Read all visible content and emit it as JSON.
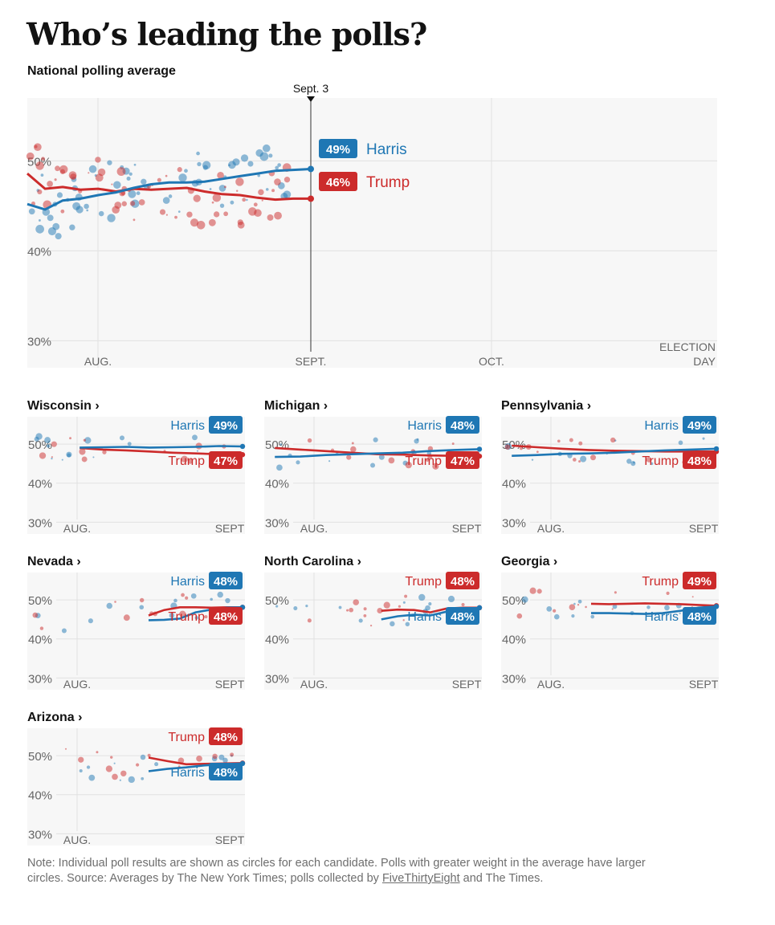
{
  "header": {
    "title": "Who’s leading the polls?",
    "subtitle": "National polling average"
  },
  "colors": {
    "harris": "#1f77b4",
    "trump": "#cc2b2b",
    "grid": "#e2e2e2",
    "bg": "#f7f7f7"
  },
  "chart_data": [
    {
      "id": "national",
      "type": "line",
      "title": "National polling average",
      "ylim": [
        27,
        57
      ],
      "y_ticks": [
        30,
        40,
        50
      ],
      "y_tick_labels": [
        "30%",
        "40%",
        "50%"
      ],
      "x_ticks": [
        "AUG.",
        "SEPT.",
        "OCT.",
        "ELECTION DAY"
      ],
      "marker_label": "Sept. 3",
      "series": [
        {
          "name": "Harris",
          "label": "49%",
          "final": 49,
          "values": [
            45.2,
            44.6,
            45.6,
            45.8,
            46.2,
            46.5,
            47.0,
            47.4,
            47.6,
            47.6,
            47.7,
            48.0,
            48.3,
            48.6,
            48.9,
            49.0,
            49.1
          ]
        },
        {
          "name": "Trump",
          "label": "46%",
          "final": 46,
          "values": [
            48.6,
            46.9,
            47.1,
            46.8,
            46.9,
            46.6,
            46.9,
            46.8,
            46.9,
            47.0,
            46.6,
            46.3,
            46.2,
            45.9,
            45.7,
            45.8,
            45.8
          ]
        }
      ]
    },
    {
      "id": "wisconsin",
      "title": "Wisconsin ›",
      "type": "line",
      "ylim": [
        27,
        57
      ],
      "y_tick_labels": [
        "30%",
        "40%",
        "50%"
      ],
      "x_ticks": [
        "AUG.",
        "SEPT"
      ],
      "start": 0.22,
      "series": [
        {
          "name": "Harris",
          "label": "49%",
          "final": 49,
          "values": [
            49.1,
            49.2,
            49.3,
            49.1,
            49.2,
            49.3,
            49.5,
            49.4
          ]
        },
        {
          "name": "Trump",
          "label": "47%",
          "final": 47,
          "values": [
            49.0,
            48.6,
            48.4,
            48.1,
            47.8,
            47.6,
            47.4,
            47.3
          ]
        }
      ],
      "order": [
        "Harris",
        "Trump"
      ]
    },
    {
      "id": "michigan",
      "title": "Michigan ›",
      "type": "line",
      "ylim": [
        27,
        57
      ],
      "y_tick_labels": [
        "30%",
        "40%",
        "50%"
      ],
      "x_ticks": [
        "AUG.",
        "SEPT"
      ],
      "start": 0.02,
      "series": [
        {
          "name": "Harris",
          "label": "48%",
          "final": 48,
          "values": [
            46.7,
            46.8,
            47.2,
            47.4,
            47.6,
            47.8,
            48.2,
            48.5,
            48.7
          ]
        },
        {
          "name": "Trump",
          "label": "47%",
          "final": 47,
          "values": [
            49.0,
            48.6,
            48.2,
            47.8,
            47.4,
            47.3,
            47.1,
            47.0,
            46.9
          ]
        }
      ],
      "order": [
        "Harris",
        "Trump"
      ]
    },
    {
      "id": "pennsylvania",
      "title": "Pennsylvania ›",
      "type": "line",
      "ylim": [
        27,
        57
      ],
      "y_tick_labels": [
        "30%",
        "40%",
        "50%"
      ],
      "x_ticks": [
        "AUG.",
        "SEPT"
      ],
      "start": 0.02,
      "series": [
        {
          "name": "Harris",
          "label": "49%",
          "final": 49,
          "values": [
            47.0,
            47.2,
            47.5,
            47.6,
            47.8,
            48.1,
            48.4,
            48.6,
            48.8
          ]
        },
        {
          "name": "Trump",
          "label": "48%",
          "final": 48,
          "values": [
            49.6,
            49.2,
            48.8,
            48.5,
            48.3,
            48.2,
            48.1,
            48.1,
            48.1
          ]
        }
      ],
      "order": [
        "Harris",
        "Trump"
      ]
    },
    {
      "id": "nevada",
      "title": "Nevada ›",
      "type": "line",
      "ylim": [
        27,
        57
      ],
      "y_tick_labels": [
        "30%",
        "40%",
        "50%"
      ],
      "x_ticks": [
        "AUG.",
        "SEPT"
      ],
      "start": 0.55,
      "series": [
        {
          "name": "Harris",
          "label": "48%",
          "final": 48,
          "values": [
            44.8,
            44.9,
            45.2,
            46.8,
            47.5,
            48.0,
            48.1
          ]
        },
        {
          "name": "Trump",
          "label": "48%",
          "final": 48,
          "values": [
            46.0,
            47.4,
            48.1,
            48.1,
            48.0,
            48.1,
            48.1
          ]
        }
      ],
      "order": [
        "Harris",
        "Trump"
      ]
    },
    {
      "id": "north-carolina",
      "title": "North Carolina ›",
      "type": "line",
      "ylim": [
        27,
        57
      ],
      "y_tick_labels": [
        "30%",
        "40%",
        "50%"
      ],
      "x_ticks": [
        "AUG.",
        "SEPT"
      ],
      "start": 0.53,
      "series": [
        {
          "name": "Harris",
          "label": "48%",
          "final": 48,
          "values": [
            45.0,
            45.8,
            46.2,
            46.0,
            47.0,
            47.5,
            48.0
          ]
        },
        {
          "name": "Trump",
          "label": "48%",
          "final": 48,
          "values": [
            47.2,
            47.5,
            47.4,
            46.8,
            47.8,
            48.0,
            48.0
          ]
        }
      ],
      "order": [
        "Trump",
        "Harris"
      ]
    },
    {
      "id": "georgia",
      "title": "Georgia ›",
      "type": "line",
      "ylim": [
        27,
        57
      ],
      "y_tick_labels": [
        "30%",
        "40%",
        "50%"
      ],
      "x_ticks": [
        "AUG.",
        "SEPT"
      ],
      "start": 0.4,
      "series": [
        {
          "name": "Harris",
          "label": "48%",
          "final": 48,
          "values": [
            46.6,
            46.6,
            46.5,
            46.4,
            46.6,
            47.2,
            48.0,
            48.3
          ]
        },
        {
          "name": "Trump",
          "label": "49%",
          "final": 49,
          "values": [
            49.0,
            48.9,
            49.0,
            49.1,
            49.0,
            48.9,
            48.7,
            48.5
          ]
        }
      ],
      "order": [
        "Trump",
        "Harris"
      ]
    },
    {
      "id": "arizona",
      "title": "Arizona ›",
      "type": "line",
      "ylim": [
        27,
        57
      ],
      "y_tick_labels": [
        "30%",
        "40%",
        "50%"
      ],
      "x_ticks": [
        "AUG.",
        "SEPT"
      ],
      "start": 0.55,
      "series": [
        {
          "name": "Harris",
          "label": "48%",
          "final": 48,
          "values": [
            46.0,
            46.6,
            47.0,
            47.5,
            47.8,
            48.0
          ]
        },
        {
          "name": "Trump",
          "label": "48%",
          "final": 48,
          "values": [
            49.5,
            48.6,
            47.8,
            47.9,
            48.0,
            48.1
          ]
        }
      ],
      "order": [
        "Trump",
        "Harris"
      ]
    }
  ],
  "note": {
    "text_before": "Note: Individual poll results are shown as circles for each candidate. Polls with greater weight in the average have larger circles. Source: Averages by The New York Times; polls collected by ",
    "link": "FiveThirtyEight",
    "text_after": " and The Times."
  }
}
